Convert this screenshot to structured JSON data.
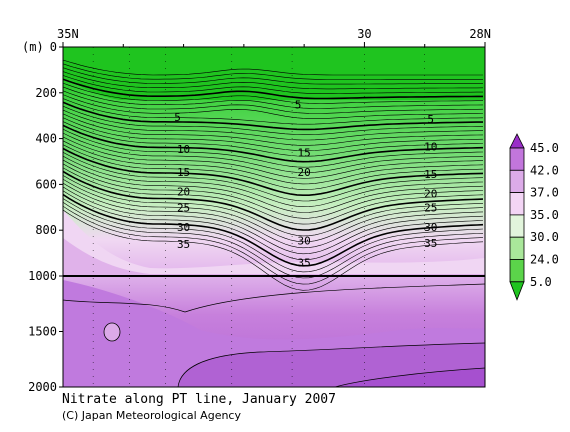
{
  "chart_data": {
    "type": "contour",
    "title": "Nitrate along PT line, January 2007",
    "credit": "(C) Japan Meteorological Agency",
    "ylabel": "(m)",
    "x_ticks": [
      {
        "lat": 35,
        "label": "35N"
      },
      {
        "lat": 30,
        "label": "30"
      },
      {
        "lat": 28,
        "label": "28N"
      }
    ],
    "xlim": [
      35,
      28
    ],
    "y_ticks_upper": [
      {
        "depth": 0,
        "label": "0"
      },
      {
        "depth": 200,
        "label": "200"
      },
      {
        "depth": 400,
        "label": "400"
      },
      {
        "depth": 600,
        "label": "600"
      },
      {
        "depth": 800,
        "label": "800"
      },
      {
        "depth": 1000,
        "label": "1000"
      }
    ],
    "y_ticks_lower": [
      {
        "depth": 1500,
        "label": "1500"
      },
      {
        "depth": 2000,
        "label": "2000"
      }
    ],
    "ylim": [
      0,
      2000
    ],
    "colorbar": {
      "labels": [
        "45.0",
        "42.0",
        "37.0",
        "35.0",
        "30.0",
        "24.0",
        "5.0"
      ],
      "colors": [
        "#9a2ec8",
        "#c276dc",
        "#dcabe8",
        "#f3d5f5",
        "#e2f5dc",
        "#a9e79a",
        "#5bd44a",
        "#1fc41f"
      ]
    },
    "contour_labels": [
      {
        "value": "5",
        "lat": 33.1,
        "depth": 305
      },
      {
        "value": "5",
        "lat": 31.1,
        "depth": 250
      },
      {
        "value": "5",
        "lat": 28.9,
        "depth": 315
      },
      {
        "value": "10",
        "lat": 33.0,
        "depth": 445
      },
      {
        "value": "10",
        "lat": 28.9,
        "depth": 435
      },
      {
        "value": "15",
        "lat": 33.0,
        "depth": 545
      },
      {
        "value": "15",
        "lat": 31.0,
        "depth": 460
      },
      {
        "value": "15",
        "lat": 28.9,
        "depth": 555
      },
      {
        "value": "20",
        "lat": 33.0,
        "depth": 630
      },
      {
        "value": "20",
        "lat": 31.0,
        "depth": 545
      },
      {
        "value": "20",
        "lat": 28.9,
        "depth": 640
      },
      {
        "value": "25",
        "lat": 33.0,
        "depth": 700
      },
      {
        "value": "25",
        "lat": 28.9,
        "depth": 700
      },
      {
        "value": "30",
        "lat": 33.0,
        "depth": 785
      },
      {
        "value": "30",
        "lat": 31.0,
        "depth": 845
      },
      {
        "value": "30",
        "lat": 28.9,
        "depth": 785
      },
      {
        "value": "35",
        "lat": 33.0,
        "depth": 860
      },
      {
        "value": "35",
        "lat": 31.0,
        "depth": 940
      },
      {
        "value": "35",
        "lat": 28.9,
        "depth": 855
      }
    ]
  }
}
